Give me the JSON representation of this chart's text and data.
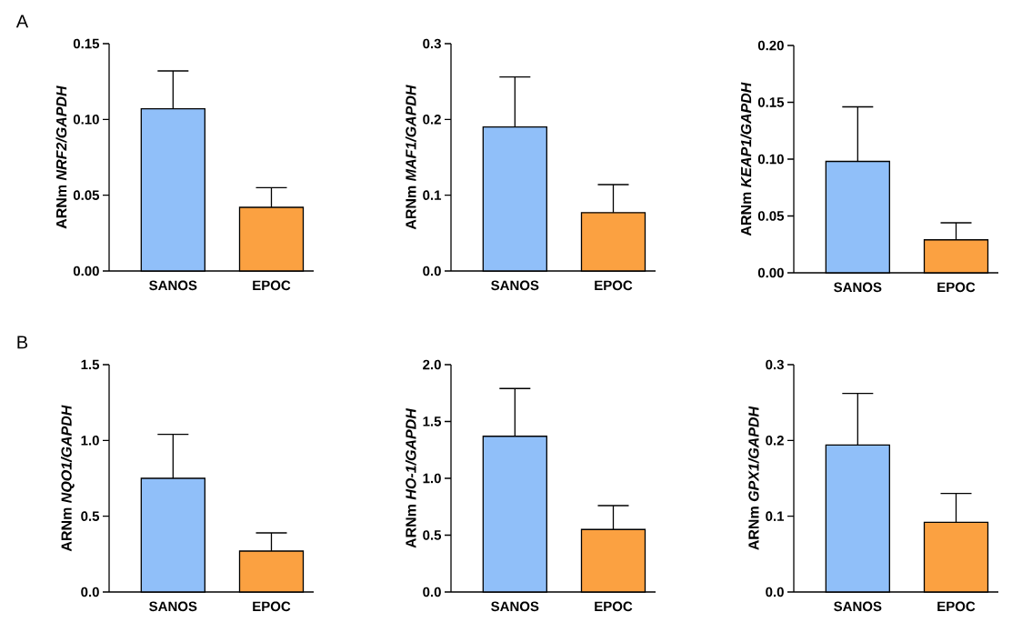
{
  "chart_data": [
    {
      "type": "bar",
      "ylabel": "ARNm *NRF2/GAPDH*",
      "categories": [
        "SANOS",
        "EPOC"
      ],
      "values": [
        0.107,
        0.042
      ],
      "colors": [
        "#90bff9",
        "#fba141"
      ],
      "errors": [
        [
          0.107,
          0.132
        ],
        [
          0.042,
          0.055
        ]
      ],
      "ylim": [
        0,
        0.15
      ],
      "yticks": [
        {
          "value": 0,
          "label": "0.00"
        },
        0.05,
        {
          "value": 0.1,
          "label": "0.10"
        },
        0.15
      ],
      "annotations": [
        "A"
      ]
    },
    {
      "type": "bar",
      "ylabel": "ARNm *MAF1/GAPDH*",
      "categories": [
        "SANOS",
        "EPOC"
      ],
      "values": [
        0.19,
        0.077
      ],
      "colors": [
        "#90bff9",
        "#fba141"
      ],
      "errors": [
        [
          0.19,
          0.256
        ],
        [
          0.077,
          0.114
        ]
      ],
      "ylim": [
        0,
        0.3
      ],
      "yticks": [
        {
          "value": 0,
          "label": "0.0"
        },
        0.1,
        0.2,
        0.3
      ]
    },
    {
      "type": "bar",
      "ylabel": "ARNm *KEAP1/GAPDH*",
      "categories": [
        "SANOS",
        "EPOC"
      ],
      "values": [
        0.098,
        0.029
      ],
      "colors": [
        "#90bff9",
        "#fba141"
      ],
      "errors": [
        [
          0.098,
          0.146
        ],
        [
          0.029,
          0.044
        ]
      ],
      "ylim": [
        0,
        0.2
      ],
      "yticks": [
        {
          "value": 0,
          "label": "0.00"
        },
        0.05,
        {
          "value": 0.1,
          "label": "0.10"
        },
        0.15,
        {
          "value": 0.2,
          "label": "0.20"
        }
      ]
    },
    {
      "type": "bar",
      "ylabel": "ARNm *NQO1/GAPDH*",
      "categories": [
        "SANOS",
        "EPOC"
      ],
      "values": [
        0.75,
        0.27
      ],
      "colors": [
        "#90bff9",
        "#fba141"
      ],
      "errors": [
        [
          0.75,
          1.04
        ],
        [
          0.27,
          0.39
        ]
      ],
      "ylim": [
        0,
        1.5
      ],
      "yticks": [
        {
          "value": 0,
          "label": "0.0"
        },
        0.5,
        {
          "value": 1,
          "label": "1.0"
        },
        1.5
      ],
      "annotations": [
        "B"
      ]
    },
    {
      "type": "bar",
      "ylabel": "ARNm *HO-1/GAPDH*",
      "categories": [
        "SANOS",
        "EPOC"
      ],
      "values": [
        1.37,
        0.55
      ],
      "colors": [
        "#90bff9",
        "#fba141"
      ],
      "errors": [
        [
          1.37,
          1.79
        ],
        [
          0.55,
          0.76
        ]
      ],
      "ylim": [
        0,
        2
      ],
      "yticks": [
        {
          "value": 0,
          "label": "0.0"
        },
        0.5,
        {
          "value": 1,
          "label": "1.0"
        },
        1.5,
        {
          "value": 2,
          "label": "2.0"
        }
      ]
    },
    {
      "type": "bar",
      "ylabel": "ARNm *GPX1/GAPDH*",
      "categories": [
        "SANOS",
        "EPOC"
      ],
      "values": [
        0.194,
        0.092
      ],
      "colors": [
        "#90bff9",
        "#fba141"
      ],
      "errors": [
        [
          0.194,
          0.262
        ],
        [
          0.092,
          0.13
        ]
      ],
      "ylim": [
        0,
        0.3
      ],
      "yticks": [
        {
          "value": 0,
          "label": "0.0"
        },
        0.1,
        0.2,
        0.3
      ]
    }
  ]
}
